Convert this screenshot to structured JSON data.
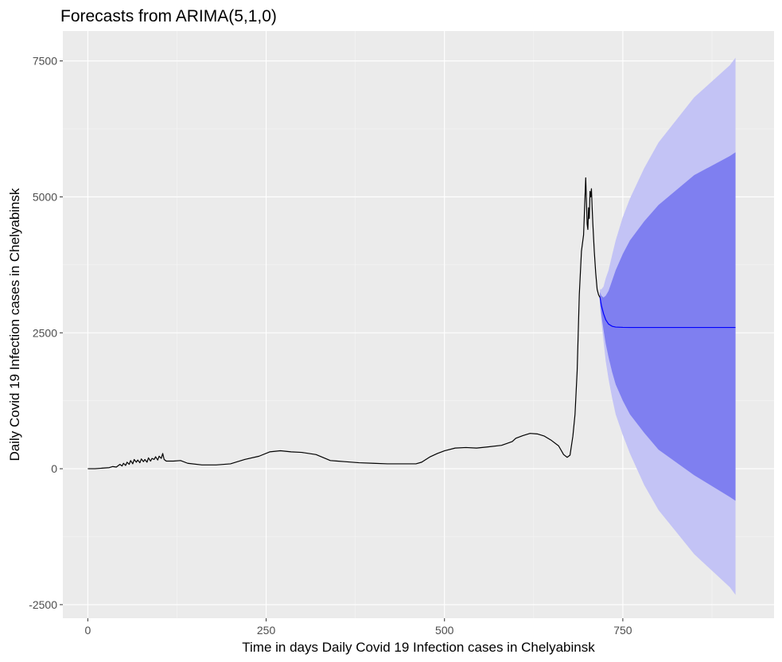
{
  "chart_data": {
    "type": "line",
    "title": "Forecasts from ARIMA(5,1,0)",
    "xlabel": "Time in days Daily Covid 19 Infection cases in Chelyabinsk",
    "ylabel": "Daily Covid 19 Infection cases in Chelyabinsk",
    "xlim": [
      -35,
      962
    ],
    "ylim": [
      -2750,
      8050
    ],
    "x_ticks": [
      0,
      250,
      500,
      750
    ],
    "x_tick_labels": [
      "0",
      "250",
      "500",
      "750"
    ],
    "y_ticks": [
      -2500,
      0,
      2500,
      5000,
      7500
    ],
    "y_tick_labels": [
      "-2500",
      "0",
      "2500",
      "5000",
      "7500"
    ],
    "grid": true,
    "legend": "none",
    "colors": {
      "panel": "#ebebeb",
      "observed": "#000000",
      "forecast": "#0000ff",
      "band80": "#7f7ff0",
      "band95": "#c3c3f5"
    },
    "observed": {
      "x": [
        0,
        10,
        20,
        30,
        35,
        40,
        45,
        48,
        50,
        53,
        55,
        58,
        60,
        63,
        65,
        68,
        70,
        73,
        75,
        78,
        80,
        83,
        85,
        88,
        90,
        93,
        95,
        98,
        100,
        103,
        105,
        107,
        110,
        120,
        130,
        140,
        160,
        180,
        200,
        220,
        240,
        255,
        270,
        285,
        300,
        320,
        340,
        350,
        360,
        380,
        400,
        420,
        440,
        460,
        468,
        480,
        490,
        500,
        515,
        530,
        545,
        560,
        580,
        595,
        600,
        610,
        620,
        630,
        640,
        650,
        660,
        667,
        672,
        676,
        680,
        683,
        686,
        689,
        692,
        695,
        698,
        700,
        701,
        702,
        703,
        704,
        705,
        706,
        707,
        708,
        710,
        712,
        714,
        716,
        718
      ],
      "y": [
        0,
        0,
        10,
        20,
        40,
        30,
        80,
        50,
        100,
        60,
        120,
        80,
        150,
        90,
        170,
        120,
        160,
        110,
        180,
        130,
        170,
        120,
        200,
        140,
        190,
        170,
        220,
        160,
        230,
        190,
        280,
        170,
        140,
        140,
        150,
        100,
        70,
        70,
        90,
        170,
        230,
        310,
        330,
        310,
        300,
        260,
        150,
        140,
        130,
        110,
        100,
        90,
        90,
        90,
        120,
        220,
        280,
        330,
        380,
        390,
        380,
        400,
        430,
        500,
        560,
        610,
        650,
        640,
        600,
        520,
        420,
        260,
        210,
        250,
        600,
        1000,
        1800,
        3200,
        4000,
        4300,
        5350,
        4500,
        4400,
        4800,
        4600,
        5100,
        5000,
        5150,
        4800,
        4500,
        4000,
        3600,
        3300,
        3200,
        3150
      ],
      "name": ""
    },
    "forecast": {
      "x": [
        718,
        720,
        723,
        726,
        730,
        735,
        740,
        750,
        760,
        780,
        800,
        850,
        900,
        908
      ],
      "y": [
        3150,
        3000,
        2850,
        2740,
        2660,
        2620,
        2605,
        2600,
        2598,
        2598,
        2598,
        2598,
        2598,
        2598
      ],
      "lower80": [
        3050,
        2820,
        2550,
        2300,
        2050,
        1780,
        1550,
        1250,
        1000,
        660,
        350,
        -120,
        -520,
        -590
      ],
      "upper80": [
        3250,
        3180,
        3150,
        3180,
        3270,
        3460,
        3650,
        3950,
        4200,
        4550,
        4850,
        5400,
        5750,
        5820
      ],
      "lower95": [
        3000,
        2700,
        2350,
        1980,
        1650,
        1300,
        1000,
        620,
        280,
        -300,
        -760,
        -1570,
        -2180,
        -2320
      ],
      "upper95": [
        3300,
        3300,
        3350,
        3500,
        3650,
        3930,
        4200,
        4630,
        4970,
        5530,
        6000,
        6830,
        7420,
        7560
      ],
      "name": ""
    }
  }
}
